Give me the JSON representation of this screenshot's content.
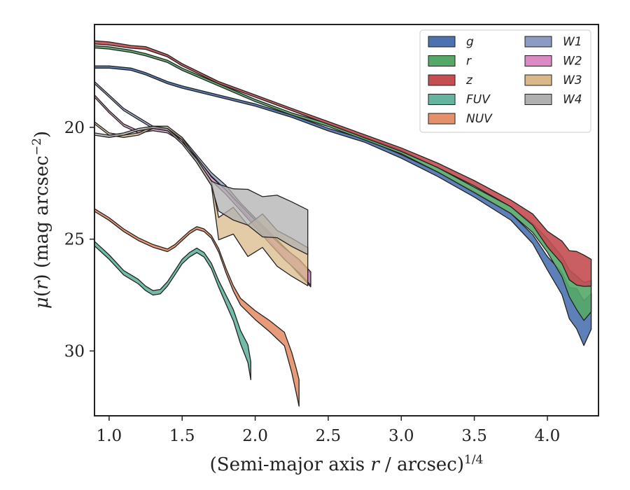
{
  "chart_data": {
    "type": "area",
    "xlabel": "(Semi-major axis r / arcsec)^1/4",
    "ylabel": "μ(r) (mag arcsec^−2)",
    "xlim": [
      0.9,
      4.35
    ],
    "ylim": [
      32.9,
      15.4
    ],
    "y_inverted": true,
    "xticks": [
      "1.0",
      "1.5",
      "2.0",
      "2.5",
      "3.0",
      "3.5",
      "4.0"
    ],
    "yticks": [
      "20",
      "25",
      "30"
    ],
    "legend_position": "top-right",
    "legend": [
      "g",
      "r",
      "z",
      "FUV",
      "NUV",
      "W1",
      "W2",
      "W3",
      "W4"
    ],
    "series": [
      {
        "name": "g",
        "color": "#4C72B0",
        "points": [
          [
            0.9,
            17.3
          ],
          [
            1.0,
            17.3
          ],
          [
            1.15,
            17.4
          ],
          [
            1.25,
            17.6
          ],
          [
            1.4,
            18.0
          ],
          [
            1.5,
            18.2
          ],
          [
            1.75,
            18.6
          ],
          [
            2.0,
            19.0
          ],
          [
            2.25,
            19.5
          ],
          [
            2.5,
            20.1
          ],
          [
            2.75,
            20.6
          ],
          [
            3.0,
            21.3
          ],
          [
            3.25,
            22.1
          ],
          [
            3.5,
            23.0
          ],
          [
            3.75,
            24.0
          ],
          [
            3.9,
            25.0
          ],
          [
            4.0,
            26.0
          ],
          [
            4.1,
            27.0
          ],
          [
            4.15,
            27.8
          ],
          [
            4.2,
            28.2
          ],
          [
            4.25,
            28.6
          ],
          [
            4.3,
            28.2
          ]
        ],
        "spread": [
          0.05,
          0.05,
          0.05,
          0.05,
          0.05,
          0.05,
          0.05,
          0.05,
          0.05,
          0.06,
          0.07,
          0.08,
          0.1,
          0.12,
          0.15,
          0.2,
          0.3,
          0.5,
          0.7,
          0.9,
          1.0,
          0.8
        ]
      },
      {
        "name": "r",
        "color": "#55A868",
        "points": [
          [
            0.9,
            16.4
          ],
          [
            1.0,
            16.45
          ],
          [
            1.15,
            16.6
          ],
          [
            1.25,
            16.75
          ],
          [
            1.4,
            17.05
          ],
          [
            1.5,
            17.4
          ],
          [
            1.75,
            18.1
          ],
          [
            2.0,
            18.8
          ],
          [
            2.25,
            19.4
          ],
          [
            2.5,
            19.9
          ],
          [
            2.75,
            20.5
          ],
          [
            3.0,
            21.1
          ],
          [
            3.25,
            21.9
          ],
          [
            3.5,
            22.8
          ],
          [
            3.75,
            23.7
          ],
          [
            3.9,
            24.5
          ],
          [
            4.0,
            25.3
          ],
          [
            4.1,
            26.3
          ],
          [
            4.15,
            26.8
          ],
          [
            4.2,
            27.3
          ],
          [
            4.25,
            27.6
          ],
          [
            4.3,
            27.4
          ]
        ],
        "spread": [
          0.05,
          0.05,
          0.05,
          0.05,
          0.05,
          0.05,
          0.05,
          0.05,
          0.05,
          0.06,
          0.07,
          0.08,
          0.1,
          0.12,
          0.15,
          0.2,
          0.3,
          0.45,
          0.6,
          0.75,
          0.85,
          0.7
        ]
      },
      {
        "name": "z",
        "color": "#C44E52",
        "points": [
          [
            0.9,
            16.2
          ],
          [
            1.0,
            16.25
          ],
          [
            1.15,
            16.4
          ],
          [
            1.25,
            16.45
          ],
          [
            1.4,
            16.8
          ],
          [
            1.5,
            17.2
          ],
          [
            1.75,
            18.0
          ],
          [
            2.0,
            18.6
          ],
          [
            2.25,
            19.2
          ],
          [
            2.5,
            19.8
          ],
          [
            2.75,
            20.4
          ],
          [
            3.0,
            21.0
          ],
          [
            3.25,
            21.7
          ],
          [
            3.5,
            22.5
          ],
          [
            3.75,
            23.4
          ],
          [
            3.9,
            24.1
          ],
          [
            4.0,
            24.9
          ],
          [
            4.1,
            25.6
          ],
          [
            4.15,
            26.0
          ],
          [
            4.2,
            26.3
          ],
          [
            4.25,
            26.4
          ],
          [
            4.3,
            26.5
          ]
        ],
        "spread": [
          0.07,
          0.07,
          0.06,
          0.06,
          0.05,
          0.05,
          0.05,
          0.05,
          0.05,
          0.06,
          0.07,
          0.08,
          0.1,
          0.12,
          0.15,
          0.25,
          0.35,
          0.5,
          0.65,
          0.75,
          0.7,
          0.6
        ]
      },
      {
        "name": "FUV",
        "color": "#64B5A0",
        "points": [
          [
            0.9,
            25.2
          ],
          [
            1.0,
            25.8
          ],
          [
            1.1,
            26.5
          ],
          [
            1.2,
            26.9
          ],
          [
            1.25,
            27.2
          ],
          [
            1.3,
            27.4
          ],
          [
            1.35,
            27.35
          ],
          [
            1.4,
            27.0
          ],
          [
            1.45,
            26.5
          ],
          [
            1.5,
            26.0
          ],
          [
            1.55,
            25.7
          ],
          [
            1.6,
            25.5
          ],
          [
            1.65,
            25.7
          ],
          [
            1.7,
            26.2
          ],
          [
            1.75,
            27.0
          ],
          [
            1.8,
            27.7
          ],
          [
            1.85,
            28.4
          ],
          [
            1.9,
            29.4
          ],
          [
            1.95,
            30.2
          ],
          [
            1.97,
            31.0
          ]
        ],
        "spread": [
          0.1,
          0.1,
          0.1,
          0.1,
          0.1,
          0.1,
          0.1,
          0.1,
          0.1,
          0.1,
          0.1,
          0.1,
          0.1,
          0.12,
          0.15,
          0.2,
          0.25,
          0.3,
          0.4,
          0.4
        ]
      },
      {
        "name": "NUV",
        "color": "#E5906A",
        "points": [
          [
            0.9,
            23.7
          ],
          [
            1.0,
            24.1
          ],
          [
            1.1,
            24.6
          ],
          [
            1.2,
            25.0
          ],
          [
            1.3,
            25.3
          ],
          [
            1.4,
            25.5
          ],
          [
            1.45,
            25.3
          ],
          [
            1.5,
            25.0
          ],
          [
            1.55,
            24.7
          ],
          [
            1.6,
            24.5
          ],
          [
            1.65,
            24.6
          ],
          [
            1.7,
            24.9
          ],
          [
            1.75,
            25.5
          ],
          [
            1.8,
            26.4
          ],
          [
            1.85,
            27.2
          ],
          [
            1.9,
            27.8
          ],
          [
            2.0,
            28.4
          ],
          [
            2.1,
            28.9
          ],
          [
            2.2,
            29.5
          ],
          [
            2.25,
            30.4
          ],
          [
            2.28,
            31.2
          ],
          [
            2.3,
            31.9
          ]
        ],
        "spread": [
          0.06,
          0.06,
          0.06,
          0.06,
          0.06,
          0.06,
          0.06,
          0.06,
          0.06,
          0.06,
          0.06,
          0.06,
          0.08,
          0.1,
          0.12,
          0.15,
          0.2,
          0.25,
          0.3,
          0.45,
          0.55,
          0.6
        ]
      },
      {
        "name": "W1",
        "color": "#8C9BC4",
        "points": [
          [
            0.9,
            18.0
          ],
          [
            1.0,
            18.6
          ],
          [
            1.1,
            19.2
          ],
          [
            1.2,
            19.6
          ],
          [
            1.3,
            20.0
          ],
          [
            1.4,
            20.1
          ],
          [
            1.5,
            20.5
          ],
          [
            1.6,
            21.3
          ],
          [
            1.7,
            22.1
          ],
          [
            1.8,
            22.7
          ],
          [
            1.9,
            23.5
          ],
          [
            2.0,
            24.2
          ],
          [
            2.1,
            24.9
          ],
          [
            2.2,
            25.6
          ],
          [
            2.3,
            26.3
          ],
          [
            2.38,
            26.8
          ]
        ],
        "spread": [
          0.05,
          0.05,
          0.05,
          0.05,
          0.05,
          0.05,
          0.05,
          0.06,
          0.08,
          0.1,
          0.12,
          0.15,
          0.2,
          0.25,
          0.3,
          0.3
        ]
      },
      {
        "name": "W2",
        "color": "#DA8BC3",
        "points": [
          [
            0.9,
            18.6
          ],
          [
            1.0,
            19.3
          ],
          [
            1.1,
            19.9
          ],
          [
            1.2,
            20.2
          ],
          [
            1.3,
            20.1
          ],
          [
            1.4,
            20.2
          ],
          [
            1.5,
            20.6
          ],
          [
            1.6,
            21.4
          ],
          [
            1.7,
            22.3
          ],
          [
            1.8,
            22.9
          ],
          [
            1.9,
            23.6
          ],
          [
            2.0,
            24.3
          ],
          [
            2.1,
            25.0
          ],
          [
            2.2,
            25.6
          ],
          [
            2.3,
            26.2
          ],
          [
            2.38,
            26.7
          ]
        ],
        "spread": [
          0.05,
          0.05,
          0.05,
          0.05,
          0.05,
          0.05,
          0.05,
          0.06,
          0.08,
          0.1,
          0.12,
          0.15,
          0.2,
          0.25,
          0.3,
          0.3
        ]
      },
      {
        "name": "W3",
        "color": "#D9B98A",
        "points": [
          [
            0.9,
            19.8
          ],
          [
            1.0,
            20.3
          ],
          [
            1.1,
            20.4
          ],
          [
            1.2,
            20.3
          ],
          [
            1.3,
            20.0
          ],
          [
            1.4,
            20.0
          ],
          [
            1.5,
            20.5
          ],
          [
            1.6,
            21.5
          ],
          [
            1.7,
            22.5
          ],
          [
            1.75,
            24.4
          ],
          [
            1.85,
            24.3
          ],
          [
            1.95,
            24.9
          ],
          [
            2.05,
            24.8
          ],
          [
            2.15,
            25.4
          ],
          [
            2.25,
            25.6
          ],
          [
            2.36,
            26.2
          ]
        ],
        "spread": [
          0.05,
          0.05,
          0.05,
          0.05,
          0.05,
          0.05,
          0.05,
          0.08,
          0.1,
          0.5,
          0.6,
          0.7,
          0.75,
          0.8,
          0.85,
          0.85
        ]
      },
      {
        "name": "W4",
        "color": "#B0B0B0",
        "points": [
          [
            0.9,
            20.3
          ],
          [
            1.0,
            20.4
          ],
          [
            1.1,
            20.3
          ],
          [
            1.2,
            20.1
          ],
          [
            1.3,
            20.0
          ],
          [
            1.4,
            20.1
          ],
          [
            1.5,
            20.7
          ],
          [
            1.6,
            21.5
          ],
          [
            1.7,
            22.5
          ],
          [
            1.75,
            23.3
          ],
          [
            1.85,
            23.4
          ],
          [
            1.95,
            23.7
          ],
          [
            2.05,
            24.0
          ],
          [
            2.15,
            24.2
          ],
          [
            2.25,
            24.5
          ],
          [
            2.36,
            24.6
          ]
        ],
        "spread": [
          0.05,
          0.05,
          0.05,
          0.05,
          0.05,
          0.05,
          0.05,
          0.08,
          0.1,
          0.6,
          0.7,
          0.8,
          0.9,
          0.95,
          1.0,
          1.0
        ]
      }
    ]
  }
}
